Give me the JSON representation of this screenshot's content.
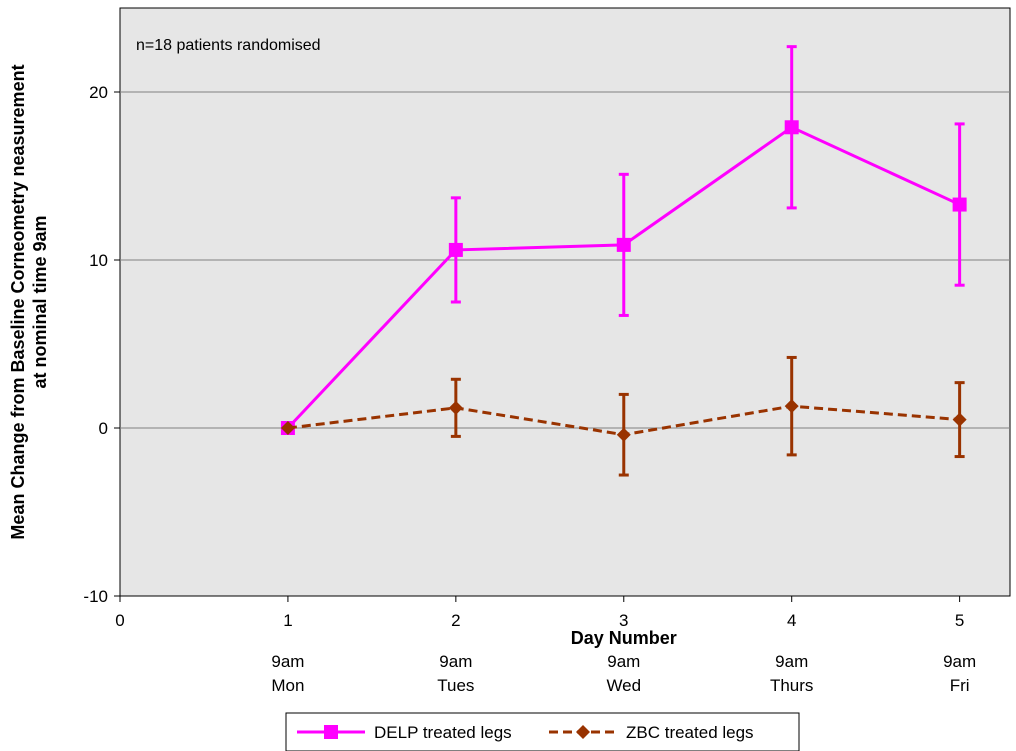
{
  "chart_data": {
    "type": "line",
    "xlabel": "Day Number",
    "ylabel_lines": [
      "Mean Change from Baseline Corneometry neasurement",
      "at nominal time 9am"
    ],
    "annotation": "n=18 patients randomised",
    "xlim": [
      0,
      5.3
    ],
    "ylim": [
      -10,
      25
    ],
    "x_ticks": [
      0,
      1,
      2,
      3,
      4,
      5
    ],
    "y_ticks": [
      -10,
      0,
      10,
      20
    ],
    "day_labels": [
      {
        "x": 1,
        "time": "9am",
        "day": "Mon"
      },
      {
        "x": 2,
        "time": "9am",
        "day": "Tues"
      },
      {
        "x": 3,
        "time": "9am",
        "day": "Wed"
      },
      {
        "x": 4,
        "time": "9am",
        "day": "Thurs"
      },
      {
        "x": 5,
        "time": "9am",
        "day": "Fri"
      }
    ],
    "grid": "horizontal",
    "legend_position": "bottom",
    "series": [
      {
        "name": "DELP treated legs",
        "color": "#ff00ff",
        "marker": "square",
        "dash": "solid",
        "x": [
          1,
          2,
          3,
          4,
          5
        ],
        "y": [
          0,
          10.6,
          10.9,
          17.9,
          13.3
        ],
        "err_low": [
          0,
          7.5,
          6.7,
          13.1,
          8.5
        ],
        "err_high": [
          0,
          13.7,
          15.1,
          22.7,
          18.1
        ]
      },
      {
        "name": "ZBC treated legs",
        "color": "#993300",
        "marker": "diamond",
        "dash": "dashed",
        "x": [
          1,
          2,
          3,
          4,
          5
        ],
        "y": [
          0,
          1.2,
          -0.4,
          1.3,
          0.5
        ],
        "err_low": [
          0,
          -0.5,
          -2.8,
          -1.6,
          -1.7
        ],
        "err_high": [
          0,
          2.9,
          2.0,
          4.2,
          2.7
        ]
      }
    ]
  }
}
